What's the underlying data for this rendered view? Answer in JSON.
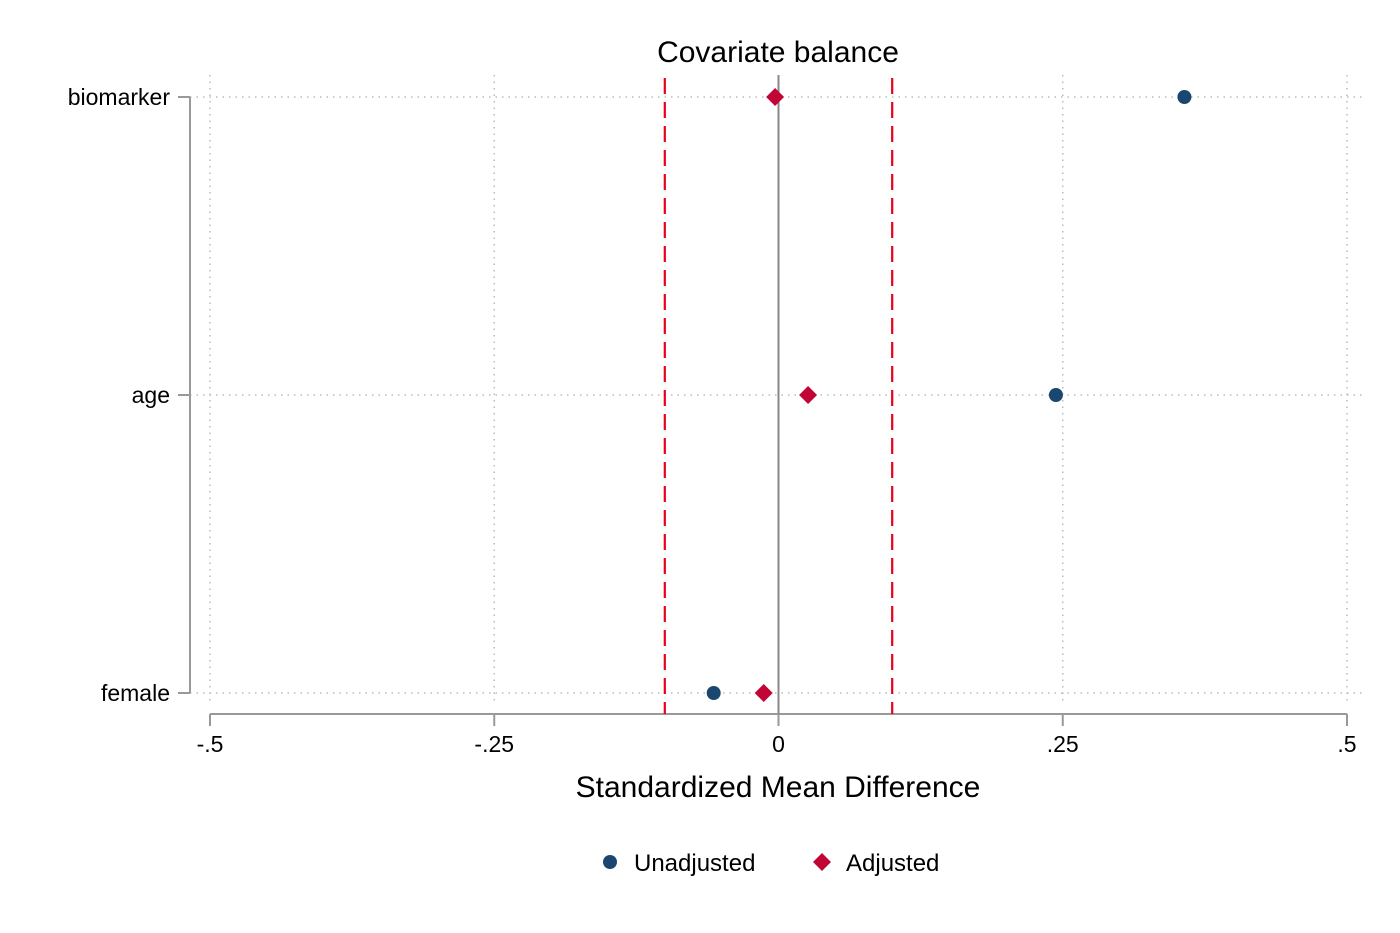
{
  "chart_data": {
    "type": "scatter",
    "title": "Covariate balance",
    "xlabel": "Standardized Mean Difference",
    "ylabel": "",
    "xlim": [
      -0.5,
      0.5
    ],
    "x_ticks": [
      -0.5,
      -0.25,
      0,
      0.25,
      0.5
    ],
    "x_tick_labels": [
      "-.5",
      "-.25",
      "0",
      ".25",
      ".5"
    ],
    "categories": [
      "biomarker",
      "age",
      "female"
    ],
    "reference_lines": {
      "zero": 0,
      "thresholds": [
        -0.1,
        0.1
      ]
    },
    "grid": true,
    "legend_position": "bottom",
    "series": [
      {
        "name": "Unadjusted",
        "marker": "circle",
        "color": "#1a476f",
        "values": [
          0.357,
          0.244,
          -0.057
        ]
      },
      {
        "name": "Adjusted",
        "marker": "diamond",
        "color": "#c10534",
        "values": [
          -0.003,
          0.026,
          -0.013
        ]
      }
    ],
    "colors": {
      "threshold": "#e8001c",
      "axis": "#999999",
      "grid": "#bbbbbb"
    }
  }
}
